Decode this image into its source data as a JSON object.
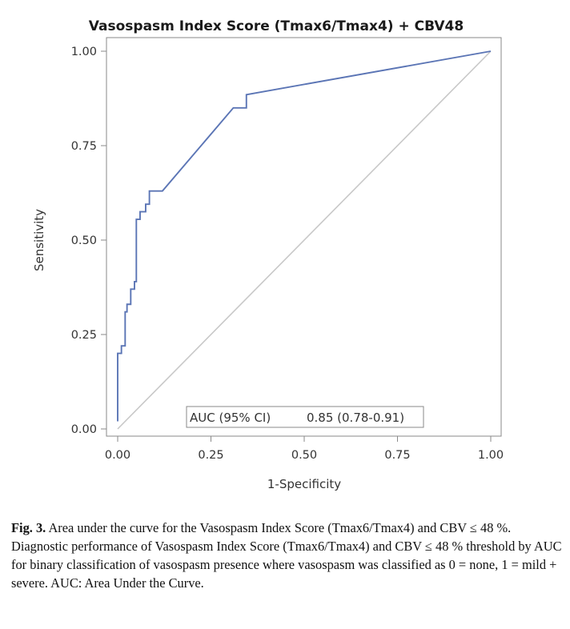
{
  "chart_data": {
    "type": "line",
    "title": "Vasospasm Index Score (Tmax6/Tmax4) + CBV48",
    "xlabel": "1-Specificity",
    "ylabel": "Sensitivity",
    "xlim": [
      0,
      1
    ],
    "ylim": [
      0,
      1
    ],
    "x_ticks": [
      "0.00",
      "0.25",
      "0.50",
      "0.75",
      "1.00"
    ],
    "y_ticks": [
      "0.00",
      "0.25",
      "0.50",
      "0.75",
      "1.00"
    ],
    "grid": false,
    "series": [
      {
        "color": "#5b75b5",
        "points": [
          [
            0.0,
            0.02
          ],
          [
            0.0,
            0.2
          ],
          [
            0.01,
            0.2
          ],
          [
            0.01,
            0.22
          ],
          [
            0.02,
            0.22
          ],
          [
            0.02,
            0.31
          ],
          [
            0.025,
            0.31
          ],
          [
            0.025,
            0.33
          ],
          [
            0.035,
            0.33
          ],
          [
            0.035,
            0.37
          ],
          [
            0.045,
            0.37
          ],
          [
            0.045,
            0.39
          ],
          [
            0.05,
            0.39
          ],
          [
            0.05,
            0.555
          ],
          [
            0.06,
            0.555
          ],
          [
            0.06,
            0.575
          ],
          [
            0.075,
            0.575
          ],
          [
            0.075,
            0.595
          ],
          [
            0.085,
            0.595
          ],
          [
            0.085,
            0.63
          ],
          [
            0.12,
            0.63
          ],
          [
            0.31,
            0.85
          ],
          [
            0.345,
            0.85
          ],
          [
            0.345,
            0.885
          ],
          [
            1.0,
            1.0
          ]
        ]
      }
    ],
    "reference_line": {
      "color": "#c8c8c8",
      "points": [
        [
          0,
          0
        ],
        [
          1,
          1
        ]
      ]
    },
    "annotation": {
      "label": "AUC (95% CI)",
      "value": "0.85 (0.78-0.91)"
    }
  },
  "caption": {
    "figure_label": "Fig. 3.",
    "text": "Area under the curve for the Vasospasm Index Score (Tmax6/Tmax4) and CBV ≤ 48 %. Diagnostic performance of Vasospasm Index Score (Tmax6/Tmax4) and CBV ≤ 48 % threshold by AUC for binary classification of vasospasm presence where vasospasm was classified as 0 = none, 1 = mild + severe. AUC: Area Under the Curve."
  }
}
